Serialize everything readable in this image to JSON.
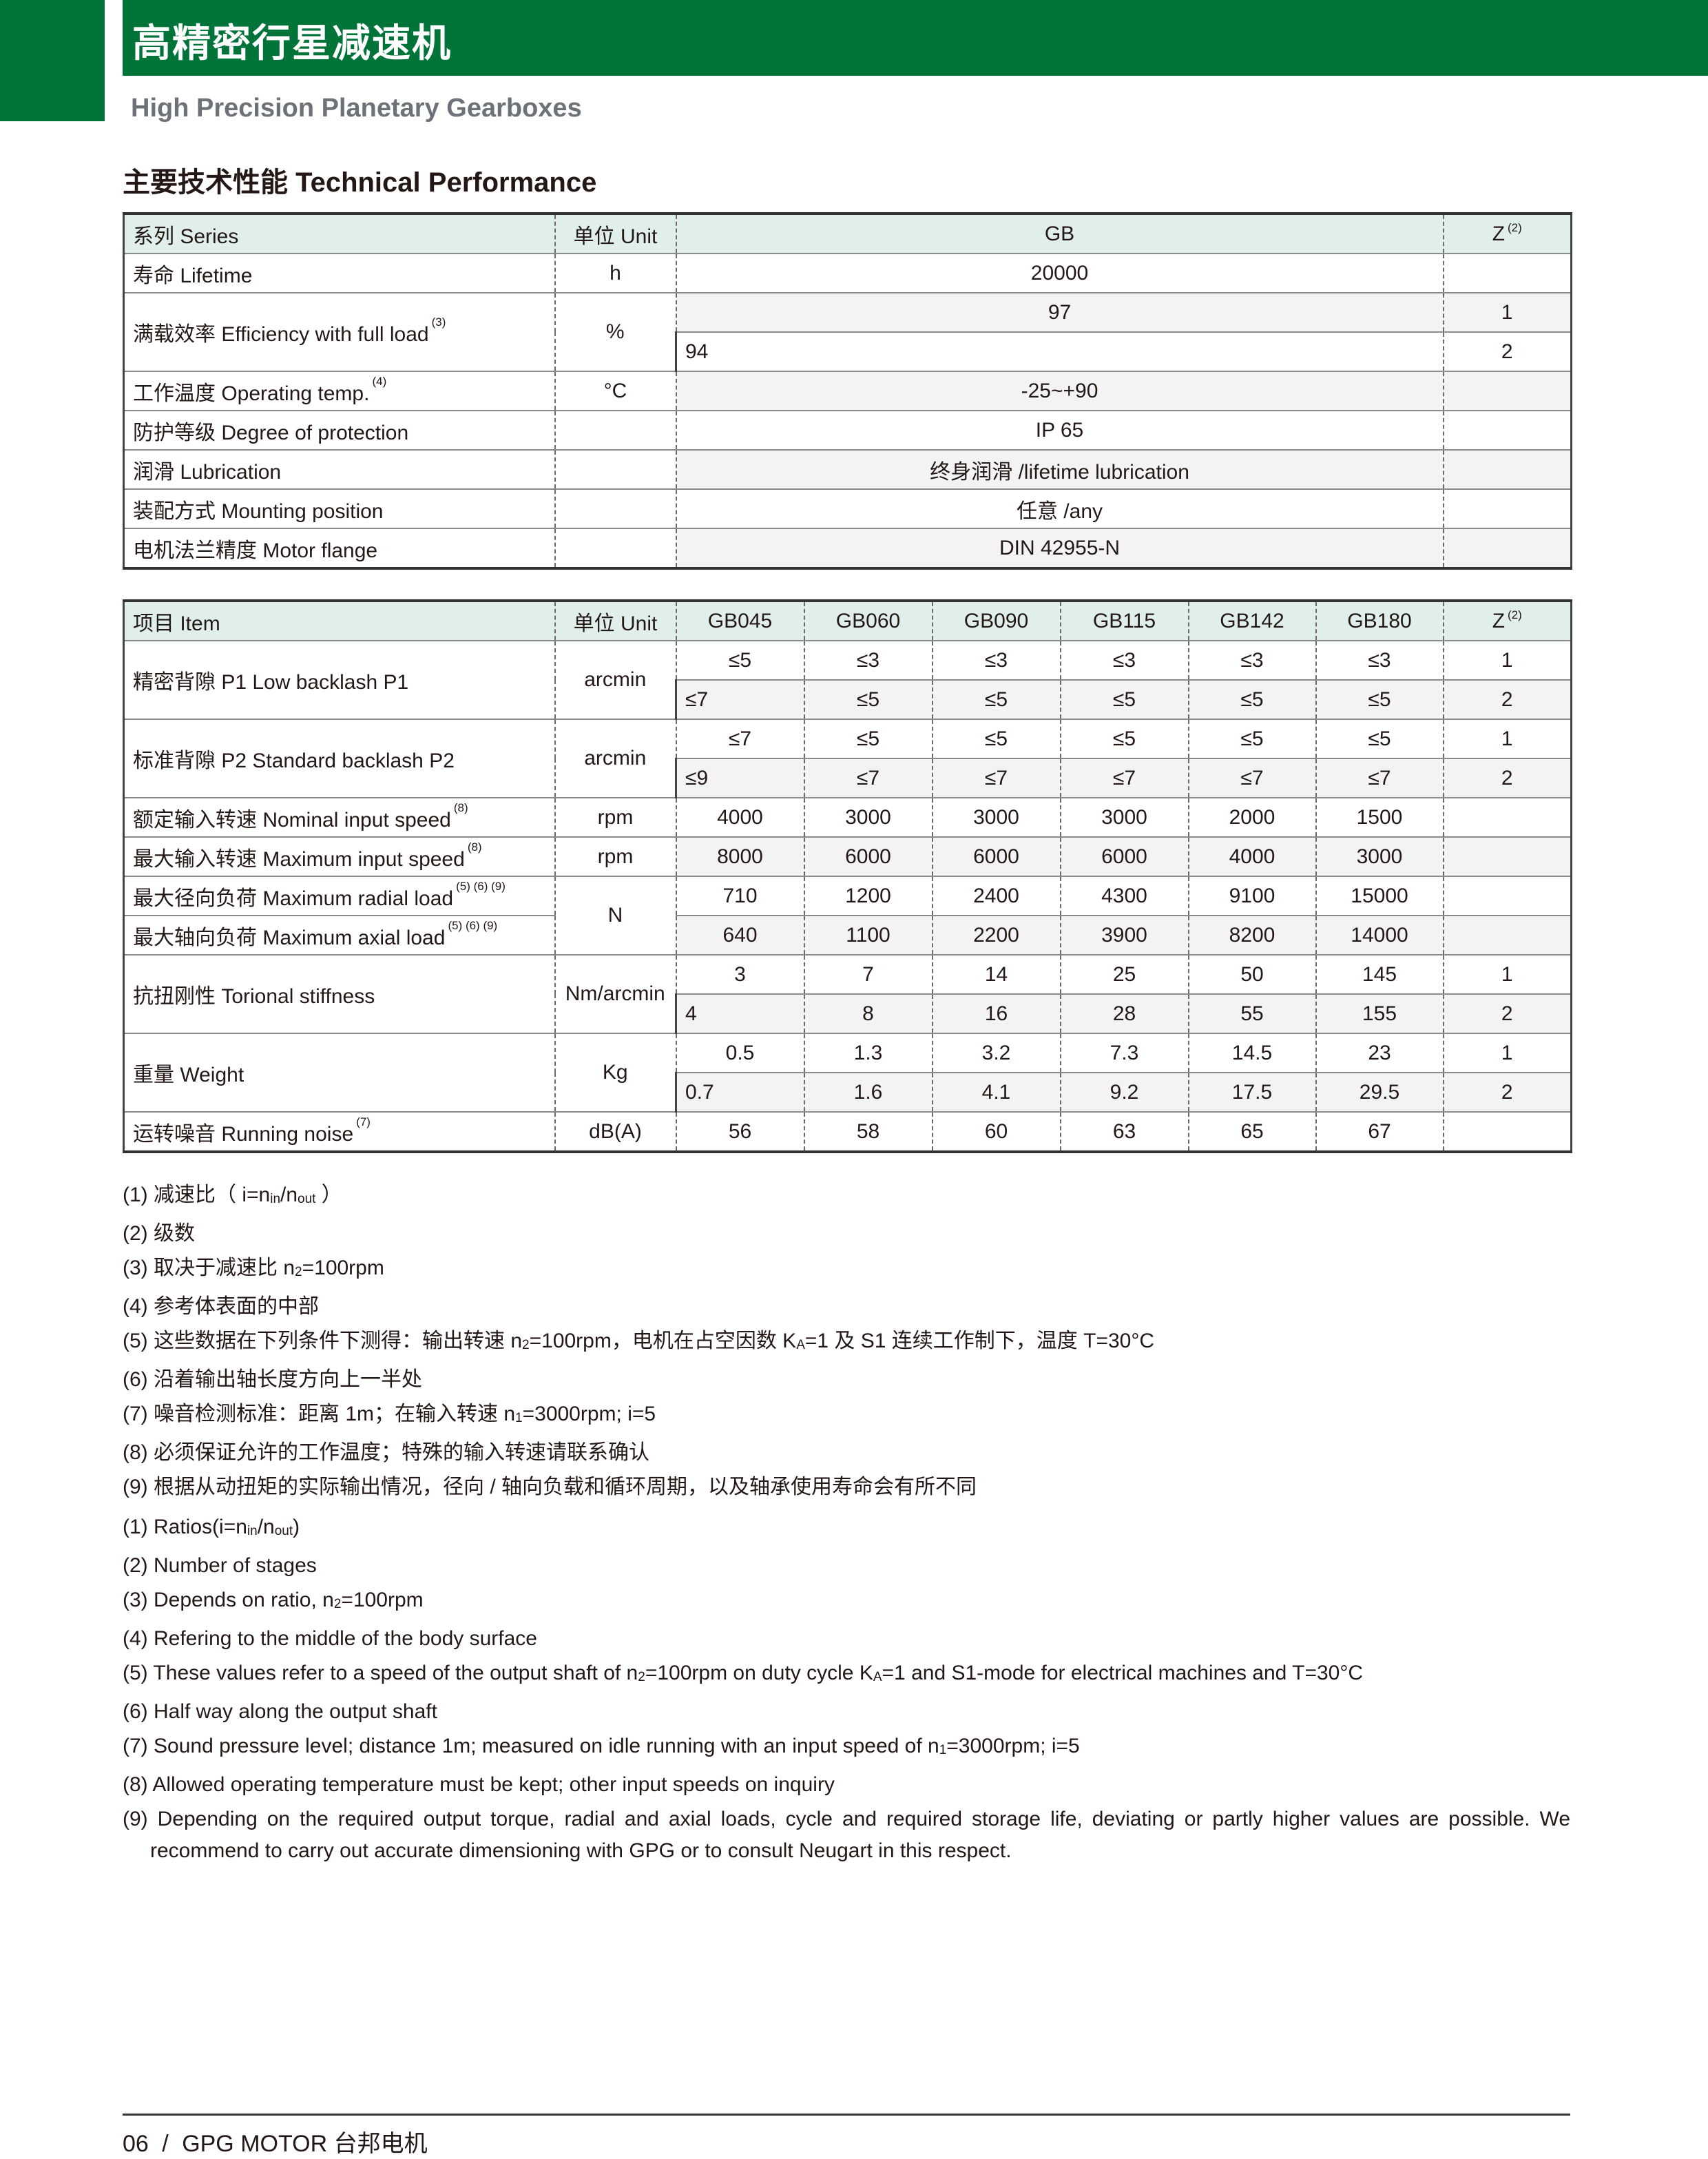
{
  "header": {
    "title": "高精密行星减速机",
    "subtitle": "High Precision Planetary Gearboxes",
    "brand_color": "#007338"
  },
  "section_title": "主要技术性能 Technical Performance",
  "table1": {
    "header": {
      "series": "系列 Series",
      "unit": "单位 Unit",
      "value": "GB",
      "z": "Z",
      "z_sup": "(2)"
    },
    "rows": [
      {
        "label": "寿命 Lifetime",
        "sup": "",
        "unit": "h",
        "lines": [
          {
            "value": "20000",
            "z": ""
          }
        ]
      },
      {
        "label": "满载效率 Efficiency with full load",
        "sup": "(3)",
        "unit": "%",
        "lines": [
          {
            "value": "97",
            "z": "1"
          },
          {
            "value": "94",
            "z": "2"
          }
        ]
      },
      {
        "label": "工作温度 Operating temp.",
        "sup": "(4)",
        "unit": "°C",
        "lines": [
          {
            "value": "-25~+90",
            "z": ""
          }
        ]
      },
      {
        "label": "防护等级 Degree of protection",
        "sup": "",
        "unit": "",
        "lines": [
          {
            "value": "IP 65",
            "z": ""
          }
        ]
      },
      {
        "label": "润滑 Lubrication",
        "sup": "",
        "unit": "",
        "lines": [
          {
            "value": "终身润滑 /lifetime lubrication",
            "z": ""
          }
        ]
      },
      {
        "label": "装配方式 Mounting position",
        "sup": "",
        "unit": "",
        "lines": [
          {
            "value": "任意 /any",
            "z": ""
          }
        ]
      },
      {
        "label": "电机法兰精度 Motor flange",
        "sup": "",
        "unit": "",
        "lines": [
          {
            "value": "DIN 42955-N",
            "z": ""
          }
        ]
      }
    ]
  },
  "table2": {
    "header": {
      "item": "项目 Item",
      "unit": "单位 Unit",
      "models": [
        "GB045",
        "GB060",
        "GB090",
        "GB115",
        "GB142",
        "GB180"
      ],
      "z": "Z",
      "z_sup": "(2)"
    },
    "groups": [
      {
        "unit": "arcmin",
        "entries": [
          {
            "label": "精密背隙 P1 Low backlash P1",
            "sup": "",
            "lines": [
              {
                "values": [
                  "≤5",
                  "≤3",
                  "≤3",
                  "≤3",
                  "≤3",
                  "≤3"
                ],
                "z": "1"
              },
              {
                "values": [
                  "≤7",
                  "≤5",
                  "≤5",
                  "≤5",
                  "≤5",
                  "≤5"
                ],
                "z": "2"
              }
            ]
          }
        ]
      },
      {
        "unit": "arcmin",
        "entries": [
          {
            "label": "标准背隙 P2 Standard backlash P2",
            "sup": "",
            "lines": [
              {
                "values": [
                  "≤7",
                  "≤5",
                  "≤5",
                  "≤5",
                  "≤5",
                  "≤5"
                ],
                "z": "1"
              },
              {
                "values": [
                  "≤9",
                  "≤7",
                  "≤7",
                  "≤7",
                  "≤7",
                  "≤7"
                ],
                "z": "2"
              }
            ]
          }
        ]
      },
      {
        "unit": "rpm",
        "entries": [
          {
            "label": "额定输入转速 Nominal input speed",
            "sup": "(8)",
            "lines": [
              {
                "values": [
                  "4000",
                  "3000",
                  "3000",
                  "3000",
                  "2000",
                  "1500"
                ],
                "z": ""
              }
            ]
          }
        ]
      },
      {
        "unit": "rpm",
        "entries": [
          {
            "label": "最大输入转速 Maximum input speed",
            "sup": "(8)",
            "lines": [
              {
                "values": [
                  "8000",
                  "6000",
                  "6000",
                  "6000",
                  "4000",
                  "3000"
                ],
                "z": ""
              }
            ]
          }
        ]
      },
      {
        "unit": "N",
        "entries": [
          {
            "label": "最大径向负荷 Maximum radial load",
            "sup": "(5) (6) (9)",
            "lines": [
              {
                "values": [
                  "710",
                  "1200",
                  "2400",
                  "4300",
                  "9100",
                  "15000"
                ],
                "z": ""
              }
            ]
          },
          {
            "label": "最大轴向负荷 Maximum axial load",
            "sup": "(5) (6) (9)",
            "lines": [
              {
                "values": [
                  "640",
                  "1100",
                  "2200",
                  "3900",
                  "8200",
                  "14000"
                ],
                "z": ""
              }
            ]
          }
        ]
      },
      {
        "unit": "Nm/arcmin",
        "entries": [
          {
            "label": "抗扭刚性 Torional stiffness",
            "sup": "",
            "lines": [
              {
                "values": [
                  "3",
                  "7",
                  "14",
                  "25",
                  "50",
                  "145"
                ],
                "z": "1"
              },
              {
                "values": [
                  "4",
                  "8",
                  "16",
                  "28",
                  "55",
                  "155"
                ],
                "z": "2"
              }
            ]
          }
        ]
      },
      {
        "unit": "Kg",
        "entries": [
          {
            "label": "重量 Weight",
            "sup": "",
            "lines": [
              {
                "values": [
                  "0.5",
                  "1.3",
                  "3.2",
                  "7.3",
                  "14.5",
                  "23"
                ],
                "z": "1"
              },
              {
                "values": [
                  "0.7",
                  "1.6",
                  "4.1",
                  "9.2",
                  "17.5",
                  "29.5"
                ],
                "z": "2"
              }
            ]
          }
        ]
      },
      {
        "unit": "dB(A)",
        "entries": [
          {
            "label": "运转噪音 Running noise",
            "sup": "(7)",
            "lines": [
              {
                "values": [
                  "56",
                  "58",
                  "60",
                  "63",
                  "65",
                  "67"
                ],
                "z": ""
              }
            ]
          }
        ]
      }
    ]
  },
  "notes_cn": [
    [
      {
        "t": "(1) 减速比（ i=n"
      },
      {
        "s": "in"
      },
      {
        "t": "/n"
      },
      {
        "s": "out"
      },
      {
        "t": " ）"
      }
    ],
    [
      {
        "t": "(2) 级数"
      }
    ],
    [
      {
        "t": "(3) 取决于减速比 n"
      },
      {
        "s": "2"
      },
      {
        "t": "=100rpm"
      }
    ],
    [
      {
        "t": "(4) 参考体表面的中部"
      }
    ],
    [
      {
        "t": "(5) 这些数据在下列条件下测得：输出转速 n"
      },
      {
        "s": "2"
      },
      {
        "t": "=100rpm，电机在占空因数 K"
      },
      {
        "s": "A"
      },
      {
        "t": "=1 及 S1 连续工作制下，温度 T=30°C"
      }
    ],
    [
      {
        "t": "(6) 沿着输出轴长度方向上一半处"
      }
    ],
    [
      {
        "t": "(7) 噪音检测标准：距离 1m；在输入转速 n"
      },
      {
        "s": "1"
      },
      {
        "t": "=3000rpm; i=5"
      }
    ],
    [
      {
        "t": "(8) 必须保证允许的工作温度；特殊的输入转速请联系确认"
      }
    ],
    [
      {
        "t": "(9) 根据从动扭矩的实际输出情况，径向 / 轴向负载和循环周期，以及轴承使用寿命会有所不同"
      }
    ]
  ],
  "notes_en": [
    [
      {
        "t": "(1) Ratios(i=n"
      },
      {
        "s": "in"
      },
      {
        "t": "/n"
      },
      {
        "s": "out"
      },
      {
        "t": ")"
      }
    ],
    [
      {
        "t": "(2) Number of stages"
      }
    ],
    [
      {
        "t": "(3) Depends on ratio, n"
      },
      {
        "s": "2"
      },
      {
        "t": "=100rpm"
      }
    ],
    [
      {
        "t": "(4) Refering to the middle of the body surface"
      }
    ],
    [
      {
        "t": "(5) These values refer to a speed of the output shaft of n"
      },
      {
        "s": "2"
      },
      {
        "t": "=100rpm on duty cycle K"
      },
      {
        "s": "A"
      },
      {
        "t": "=1 and S1-mode for electrical machines and T=30°C"
      }
    ],
    [
      {
        "t": "(6) Half way along the output shaft"
      }
    ],
    [
      {
        "t": "(7) Sound pressure level; distance 1m; measured on idle running with an input speed of n"
      },
      {
        "s": "1"
      },
      {
        "t": "=3000rpm; i=5"
      }
    ],
    [
      {
        "t": "(8) Allowed operating temperature must be kept; other input speeds on inquiry"
      }
    ],
    [
      {
        "t": "(9) Depending on the required output torque, radial and axial loads, cycle and required storage life, deviating or partly higher values are possible. We recommend to carry out accurate dimensioning with GPG or to consult Neugart in this respect."
      }
    ]
  ],
  "footer": {
    "page": "06",
    "separator": "/",
    "company": "GPG MOTOR 台邦电机"
  }
}
